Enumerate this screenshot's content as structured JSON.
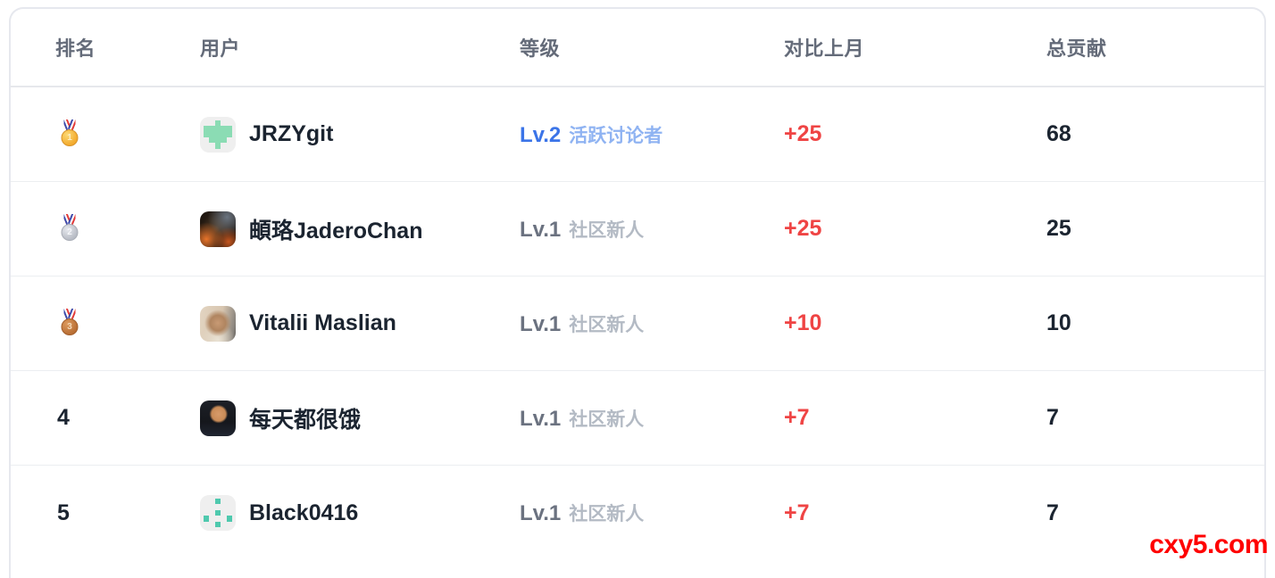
{
  "table": {
    "columns": [
      {
        "key": "rank",
        "label": "排名"
      },
      {
        "key": "user",
        "label": "用户"
      },
      {
        "key": "level",
        "label": "等级"
      },
      {
        "key": "delta",
        "label": "对比上月"
      },
      {
        "key": "total",
        "label": "总贡献"
      }
    ],
    "rows": [
      {
        "rank": "1",
        "medal": "gold",
        "username": "JRZYgit",
        "avatar": "identicon-cross",
        "level": "Lv.2",
        "level_title": "活跃讨论者",
        "level_highlight": true,
        "delta": "+25",
        "total": "68"
      },
      {
        "rank": "2",
        "medal": "silver",
        "username": "頔珞JaderoChan",
        "avatar": "photo-fire-hood",
        "level": "Lv.1",
        "level_title": "社区新人",
        "level_highlight": false,
        "delta": "+25",
        "total": "25"
      },
      {
        "rank": "3",
        "medal": "bronze",
        "username": "Vitalii Maslian",
        "avatar": "photo-portrait",
        "level": "Lv.1",
        "level_title": "社区新人",
        "level_highlight": false,
        "delta": "+10",
        "total": "10"
      },
      {
        "rank": "4",
        "medal": "",
        "username": "每天都很饿",
        "avatar": "photo-dark-cartoon",
        "level": "Lv.1",
        "level_title": "社区新人",
        "level_highlight": false,
        "delta": "+7",
        "total": "7"
      },
      {
        "rank": "5",
        "medal": "",
        "username": "Black0416",
        "avatar": "identicon-dots",
        "level": "Lv.1",
        "level_title": "社区新人",
        "level_highlight": false,
        "delta": "+7",
        "total": "7"
      }
    ]
  },
  "icons": {
    "medal_gold": "gold-medal-icon",
    "medal_silver": "silver-medal-icon",
    "medal_bronze": "bronze-medal-icon",
    "avatar_identicon_cross": "mint-cross-identicon",
    "avatar_identicon_dots": "teal-dots-identicon"
  },
  "colors": {
    "level_highlight": "#3b74e8",
    "level_title_highlight": "#8fb3f2",
    "level_normal": "#6b7280",
    "level_title_normal": "#b3bac4",
    "delta_positive": "#ef4444",
    "header_text": "#646b79",
    "identicon_mint": "#8bdcb4",
    "identicon_teal": "#4fc9ae",
    "watermark": "#ff0000"
  },
  "watermark": "cxy5.com"
}
